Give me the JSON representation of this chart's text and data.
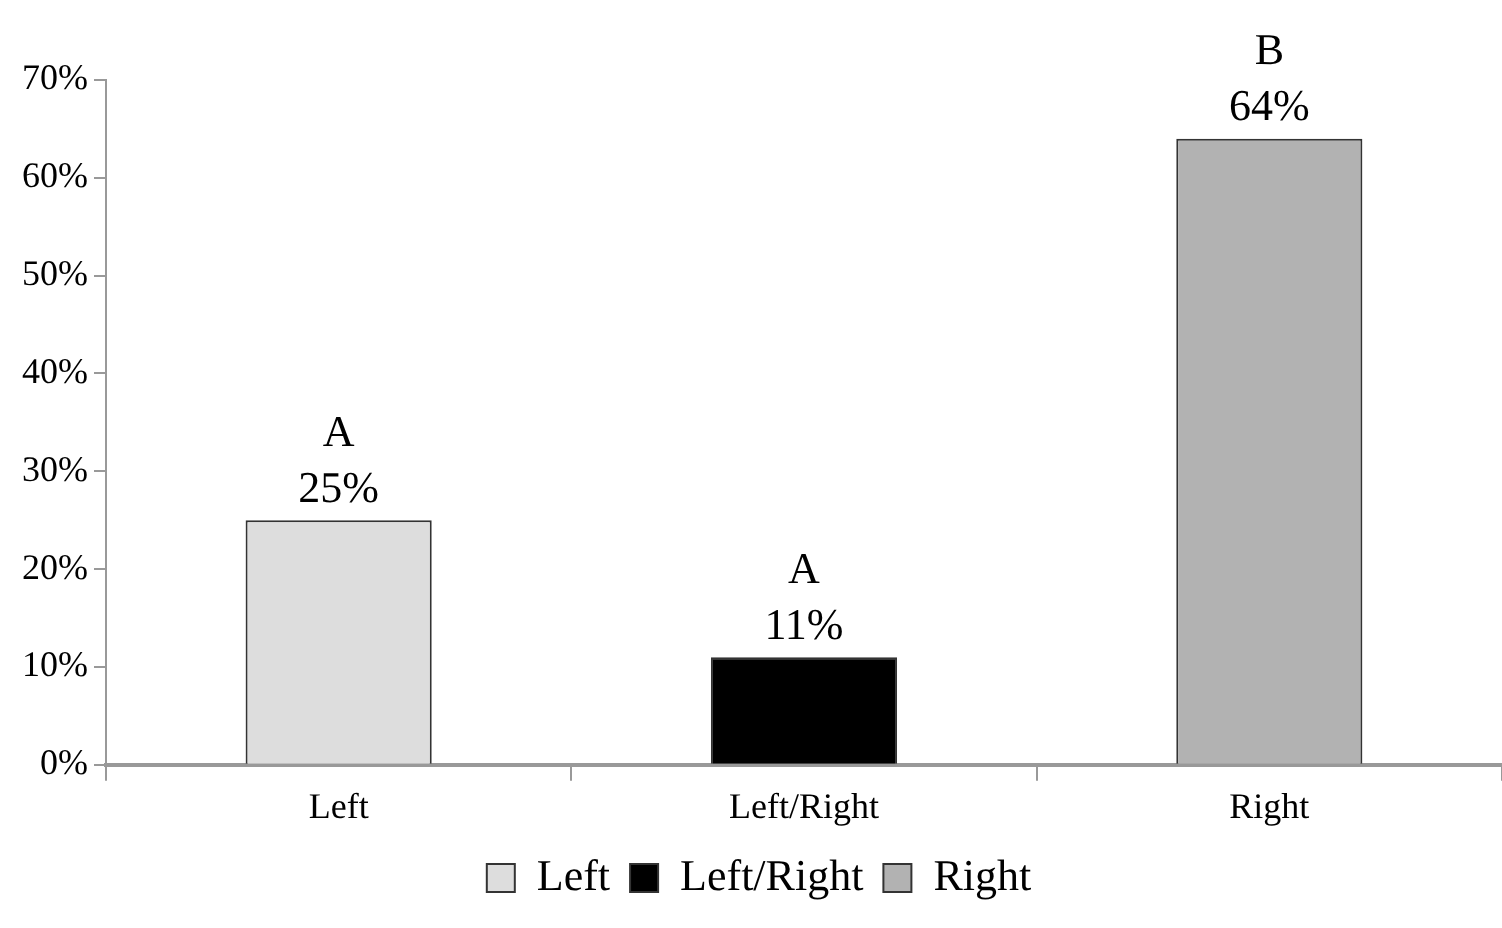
{
  "chart_data": {
    "type": "bar",
    "categories": [
      "Left",
      "Left/Right",
      "Right"
    ],
    "series": [
      {
        "name": "Left",
        "color": "#dddddd",
        "values": [
          25,
          null,
          null
        ],
        "value_labels": [
          "25%",
          null,
          null
        ]
      },
      {
        "name": "Left/Right",
        "color": "#000000",
        "values": [
          null,
          11,
          null
        ],
        "value_labels": [
          null,
          "11%",
          null
        ]
      },
      {
        "name": "Right",
        "color": "#b2b2b2",
        "values": [
          null,
          null,
          64
        ],
        "value_labels": [
          null,
          null,
          "64%"
        ]
      }
    ],
    "annotations": [
      {
        "text": "A",
        "x": "Left",
        "y": 25
      },
      {
        "text": "A",
        "x": "Left/Right",
        "y": 11
      },
      {
        "text": "B",
        "x": "Right",
        "y": 64
      }
    ],
    "ylim": [
      0,
      70
    ],
    "yticks": [
      {
        "value": 0,
        "label": "0%"
      },
      {
        "value": 10,
        "label": "10%"
      },
      {
        "value": 20,
        "label": "20%"
      },
      {
        "value": 30,
        "label": "30%"
      },
      {
        "value": 40,
        "label": "40%"
      },
      {
        "value": 50,
        "label": "50%"
      },
      {
        "value": 60,
        "label": "60%"
      },
      {
        "value": 70,
        "label": "70%"
      }
    ],
    "grid": false,
    "legend": "bottom"
  }
}
